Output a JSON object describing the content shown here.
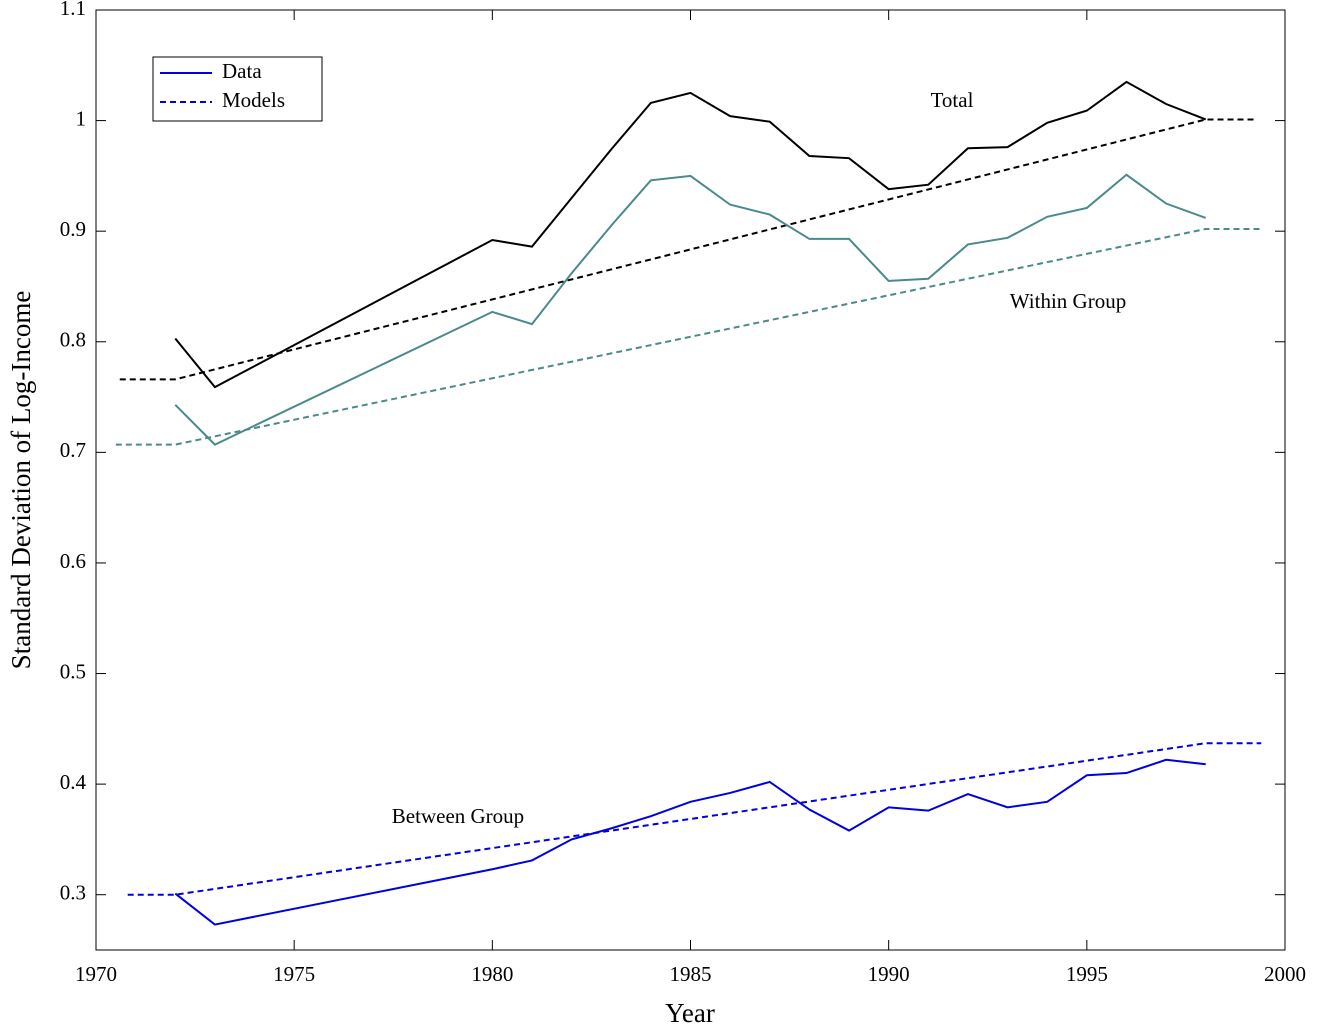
{
  "chart_data": {
    "type": "line",
    "x_label": "Year",
    "y_label": "Standard Deviation of Log-Income",
    "xlim": [
      1970,
      2000
    ],
    "xticks": [
      1970,
      1975,
      1980,
      1985,
      1990,
      1995,
      2000
    ],
    "ylim": [
      0.25,
      1.1
    ],
    "yticks": [
      0.3,
      0.4,
      0.5,
      0.6,
      0.7,
      0.8,
      0.9,
      1,
      1.1
    ],
    "legend": {
      "position": "upper left",
      "color": "#0000e0",
      "entries": [
        {
          "label": "Data",
          "dashed": false
        },
        {
          "label": "Models",
          "dashed": true
        }
      ]
    },
    "series": [
      {
        "name": "Total",
        "color": "#000000",
        "dashed": false,
        "x": [
          1972,
          1973,
          1980,
          1981,
          1982,
          1983,
          1984,
          1985,
          1986,
          1987,
          1988,
          1989,
          1990,
          1991,
          1992,
          1993,
          1994,
          1995,
          1996,
          1997,
          1998
        ],
        "values": [
          0.803,
          0.759,
          0.892,
          0.886,
          0.93,
          0.974,
          1.016,
          1.025,
          1.004,
          0.999,
          0.968,
          0.966,
          0.938,
          0.942,
          0.975,
          0.976,
          0.998,
          1.009,
          1.035,
          1.015,
          1.001
        ]
      },
      {
        "color": "#000000",
        "dashed": true,
        "x": [
          1970.6,
          1972,
          1998,
          1999.3
        ],
        "values": [
          0.766,
          0.766,
          1.001,
          1.001
        ]
      },
      {
        "name": "Within Group",
        "color": "#4a8a8a",
        "dashed": false,
        "x": [
          1972,
          1973,
          1980,
          1981,
          1982,
          1983,
          1984,
          1985,
          1986,
          1987,
          1988,
          1989,
          1990,
          1991,
          1992,
          1993,
          1994,
          1995,
          1996,
          1997,
          1998
        ],
        "values": [
          0.743,
          0.707,
          0.827,
          0.816,
          0.862,
          0.905,
          0.946,
          0.95,
          0.924,
          0.915,
          0.893,
          0.893,
          0.855,
          0.857,
          0.888,
          0.894,
          0.913,
          0.921,
          0.951,
          0.925,
          0.912
        ]
      },
      {
        "color": "#4a8a8a",
        "dashed": true,
        "x": [
          1970.5,
          1972,
          1998,
          1999.4
        ],
        "values": [
          0.707,
          0.707,
          0.902,
          0.902
        ]
      },
      {
        "name": "Between Group",
        "color": "#0000e0",
        "dashed": false,
        "x": [
          1972,
          1973,
          1980,
          1981,
          1982,
          1983,
          1984,
          1985,
          1986,
          1987,
          1988,
          1989,
          1990,
          1991,
          1992,
          1993,
          1994,
          1995,
          1996,
          1997,
          1998
        ],
        "values": [
          0.301,
          0.273,
          0.323,
          0.331,
          0.35,
          0.36,
          0.371,
          0.384,
          0.392,
          0.402,
          0.377,
          0.358,
          0.379,
          0.376,
          0.391,
          0.379,
          0.384,
          0.408,
          0.41,
          0.422,
          0.418
        ]
      },
      {
        "color": "#0000e0",
        "dashed": true,
        "x": [
          1970.8,
          1972,
          1998,
          1999.4
        ],
        "values": [
          0.3,
          0.3,
          0.437,
          0.437
        ]
      }
    ]
  }
}
